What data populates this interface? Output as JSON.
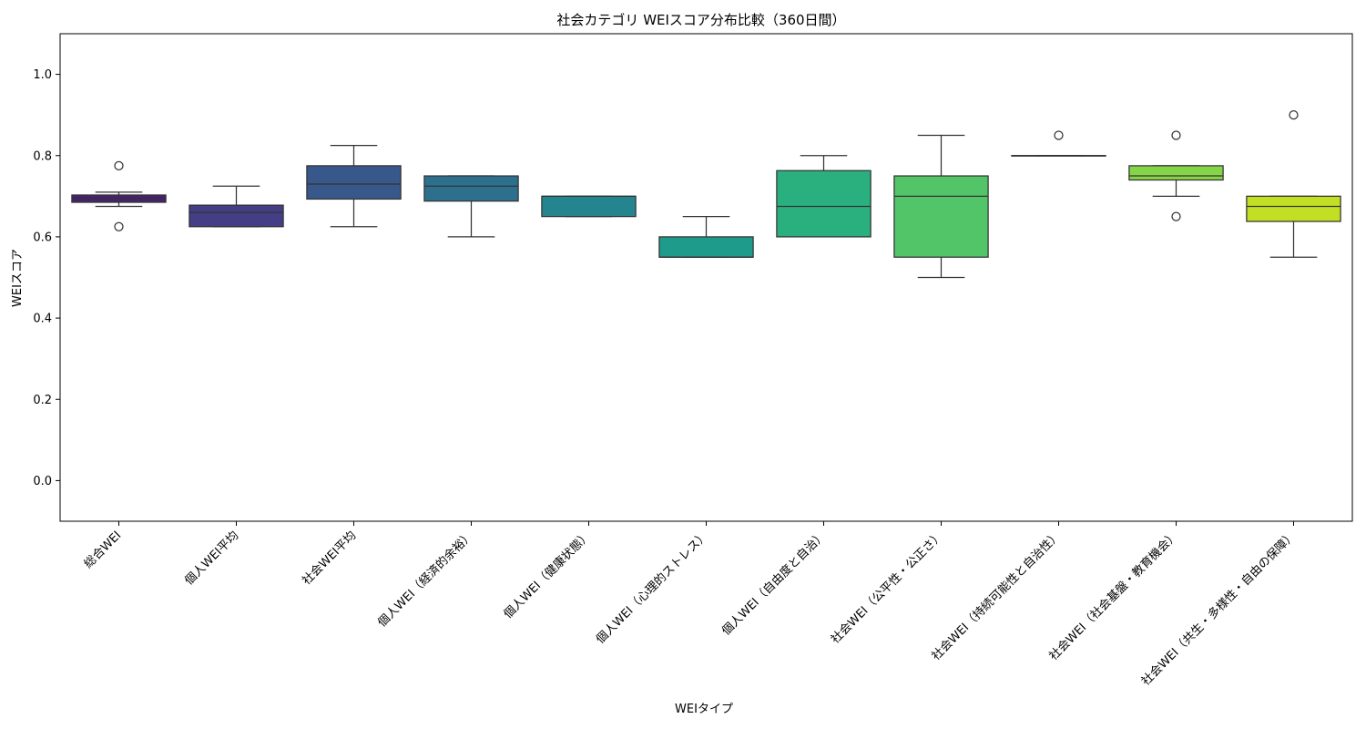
{
  "chart_data": {
    "type": "box",
    "title": "社会カテゴリ WEIスコア分布比較（360日間）",
    "xlabel": "WEIタイプ",
    "ylabel": "WEIスコア",
    "ylim": [
      -0.1,
      1.1
    ],
    "yticks": [
      "0.0",
      "0.2",
      "0.4",
      "0.6",
      "0.8",
      "1.0"
    ],
    "grid": false,
    "categories": [
      "総合WEI",
      "個人WEI平均",
      "社会WEI平均",
      "個人WEI（経済的余裕）",
      "個人WEI（健康状態）",
      "個人WEI（心理的ストレス）",
      "個人WEI（自由度と自治）",
      "社会WEI（公平性・公正さ）",
      "社会WEI（持続可能性と自治性）",
      "社会WEI（社会基盤・教育機会）",
      "社会WEI（共生・多様性・自由の保障）"
    ],
    "boxes": [
      {
        "whisker_low": 0.675,
        "q1": 0.685,
        "median": 0.695,
        "q3": 0.703,
        "whisker_high": 0.71,
        "outliers": [
          0.775,
          0.625
        ],
        "color": "#482173"
      },
      {
        "whisker_low": 0.625,
        "q1": 0.625,
        "median": 0.66,
        "q3": 0.678,
        "whisker_high": 0.725,
        "outliers": [],
        "color": "#433e85"
      },
      {
        "whisker_low": 0.625,
        "q1": 0.693,
        "median": 0.73,
        "q3": 0.775,
        "whisker_high": 0.825,
        "outliers": [],
        "color": "#38588c"
      },
      {
        "whisker_low": 0.6,
        "q1": 0.688,
        "median": 0.725,
        "q3": 0.75,
        "whisker_high": 0.75,
        "outliers": [],
        "color": "#2d708e"
      },
      {
        "whisker_low": 0.65,
        "q1": 0.65,
        "median": 0.7,
        "q3": 0.7,
        "whisker_high": 0.7,
        "outliers": [],
        "color": "#25858e"
      },
      {
        "whisker_low": 0.55,
        "q1": 0.55,
        "median": 0.55,
        "q3": 0.6,
        "whisker_high": 0.65,
        "outliers": [],
        "color": "#1e9b8a"
      },
      {
        "whisker_low": 0.6,
        "q1": 0.6,
        "median": 0.675,
        "q3": 0.763,
        "whisker_high": 0.8,
        "outliers": [],
        "color": "#2ab07f"
      },
      {
        "whisker_low": 0.5,
        "q1": 0.55,
        "median": 0.7,
        "q3": 0.75,
        "whisker_high": 0.85,
        "outliers": [],
        "color": "#52c569"
      },
      {
        "whisker_low": 0.8,
        "q1": 0.8,
        "median": 0.8,
        "q3": 0.8,
        "whisker_high": 0.8,
        "outliers": [
          0.85
        ],
        "color": "#86d549"
      },
      {
        "whisker_low": 0.7,
        "q1": 0.74,
        "median": 0.75,
        "q3": 0.775,
        "whisker_high": 0.775,
        "outliers": [
          0.85,
          0.65
        ],
        "color": "#86d549"
      },
      {
        "whisker_low": 0.55,
        "q1": 0.638,
        "median": 0.675,
        "q3": 0.7,
        "whisker_high": 0.7,
        "outliers": [
          0.9
        ],
        "color": "#c2df23"
      }
    ]
  }
}
